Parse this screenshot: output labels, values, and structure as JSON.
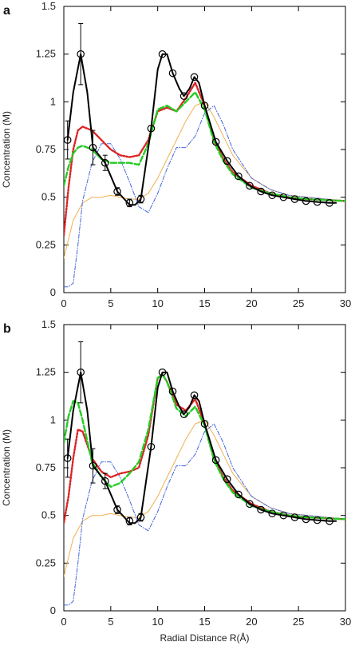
{
  "chart_data": [
    {
      "panel": "a",
      "type": "line",
      "xlabel": "",
      "ylabel": "Concentration (M)",
      "xlim": [
        0,
        30
      ],
      "ylim": [
        0,
        1.5
      ],
      "xticks": [
        "0",
        "5",
        "10",
        "15",
        "20",
        "25",
        "30"
      ],
      "yticks": [
        "0",
        "0.25",
        "0.5",
        "0.75",
        "1",
        "1.25",
        "1.5"
      ],
      "grid": false,
      "series": [
        {
          "style": "markers-with-errorbars",
          "color": "#000000",
          "x": [
            0.4,
            1.8,
            3.1,
            4.4,
            5.7,
            7.0,
            8.2,
            9.3,
            10.5,
            11.6,
            12.8,
            13.9,
            15.0,
            16.2,
            17.4,
            18.6,
            19.8,
            21.0,
            22.2,
            23.4,
            24.6,
            25.8,
            27.0,
            28.3
          ],
          "values": [
            0.8,
            1.25,
            0.76,
            0.68,
            0.53,
            0.47,
            0.49,
            0.86,
            1.25,
            1.15,
            1.03,
            1.13,
            0.98,
            0.79,
            0.69,
            0.61,
            0.56,
            0.53,
            0.51,
            0.5,
            0.49,
            0.48,
            0.475,
            0.47
          ],
          "errors": [
            0.1,
            0.16,
            0.09,
            0.04,
            0.02,
            0.02,
            0.02,
            0.01,
            0.01,
            0.01,
            0.01,
            0.01,
            0.01,
            0.01,
            0.01,
            0.01,
            0.01,
            0.01,
            0.01,
            0.01,
            0.01,
            0.01,
            0.01,
            0.01
          ]
        },
        {
          "style": "solid",
          "color": "#000000",
          "x": [
            0.4,
            1.0,
            1.8,
            2.5,
            3.1,
            4.4,
            5.7,
            7.0,
            7.6,
            8.2,
            9.3,
            10.0,
            10.5,
            11.0,
            11.6,
            12.3,
            12.8,
            13.4,
            13.9,
            14.4,
            15.0,
            16.2,
            17.4,
            18.6,
            19.8,
            21.0,
            22.2,
            23.4,
            24.6,
            25.8,
            27.0,
            28.3,
            29.0
          ],
          "values": [
            0.8,
            1.05,
            1.25,
            1.05,
            0.76,
            0.68,
            0.53,
            0.46,
            0.46,
            0.49,
            0.86,
            1.17,
            1.25,
            1.25,
            1.15,
            1.07,
            1.03,
            1.07,
            1.13,
            1.1,
            0.98,
            0.79,
            0.69,
            0.61,
            0.56,
            0.53,
            0.51,
            0.5,
            0.49,
            0.48,
            0.475,
            0.47,
            0.47
          ]
        },
        {
          "style": "dashed",
          "color": "#22cc22",
          "x": [
            0,
            0.5,
            1.0,
            1.5,
            2.0,
            3.0,
            4.0,
            5.0,
            6.0,
            7.0,
            8.0,
            9.0,
            10.0,
            11.0,
            12.0,
            13.0,
            14.0,
            15.0,
            16.0,
            17.0,
            18.0,
            20.0,
            22.0,
            24.0,
            26.0,
            28.0,
            30.0
          ],
          "values": [
            0.56,
            0.66,
            0.73,
            0.76,
            0.77,
            0.75,
            0.7,
            0.68,
            0.68,
            0.68,
            0.67,
            0.78,
            0.96,
            0.98,
            0.95,
            1.0,
            1.05,
            0.96,
            0.79,
            0.69,
            0.62,
            0.55,
            0.52,
            0.5,
            0.49,
            0.485,
            0.48
          ]
        },
        {
          "style": "dotted",
          "color": "#dd2222",
          "x": [
            0,
            0.5,
            1.0,
            1.5,
            2.0,
            3.0,
            4.0,
            5.0,
            6.0,
            7.0,
            8.0,
            9.0,
            10.0,
            11.0,
            12.0,
            13.0,
            14.0,
            15.0,
            16.0,
            17.0,
            18.0,
            20.0,
            22.0,
            24.0,
            26.0,
            28.0,
            30.0
          ],
          "values": [
            0.3,
            0.55,
            0.75,
            0.85,
            0.87,
            0.85,
            0.8,
            0.75,
            0.72,
            0.71,
            0.72,
            0.8,
            0.95,
            0.97,
            0.95,
            1.02,
            1.1,
            0.98,
            0.8,
            0.7,
            0.63,
            0.56,
            0.52,
            0.5,
            0.49,
            0.485,
            0.48
          ]
        },
        {
          "style": "thin-solid",
          "color": "#f0b050",
          "x": [
            0,
            0.5,
            1.0,
            2.0,
            3.0,
            4.0,
            5.0,
            6.0,
            7.0,
            8.0,
            9.0,
            10.0,
            11.0,
            12.0,
            13.0,
            14.0,
            15.0,
            16.0,
            17.0,
            18.0,
            20.0,
            22.0,
            24.0,
            26.0,
            28.0,
            30.0
          ],
          "values": [
            0.18,
            0.28,
            0.38,
            0.47,
            0.5,
            0.5,
            0.51,
            0.5,
            0.49,
            0.49,
            0.52,
            0.6,
            0.7,
            0.8,
            0.9,
            0.98,
            1.0,
            0.92,
            0.82,
            0.72,
            0.6,
            0.54,
            0.51,
            0.5,
            0.49,
            0.48
          ]
        },
        {
          "style": "dash-dot",
          "color": "#4466dd",
          "x": [
            0,
            0.5,
            1.0,
            1.5,
            2.0,
            3.0,
            4.0,
            5.0,
            6.0,
            7.0,
            8.0,
            9.0,
            10.0,
            11.0,
            12.0,
            13.0,
            14.0,
            15.0,
            16.0,
            17.0,
            18.0,
            20.0,
            22.0,
            24.0,
            26.0,
            28.0,
            30.0
          ],
          "values": [
            0.03,
            0.03,
            0.05,
            0.25,
            0.48,
            0.68,
            0.78,
            0.78,
            0.7,
            0.58,
            0.45,
            0.42,
            0.52,
            0.65,
            0.76,
            0.76,
            0.82,
            0.94,
            0.98,
            0.88,
            0.75,
            0.6,
            0.54,
            0.51,
            0.5,
            0.49,
            0.48
          ]
        }
      ]
    },
    {
      "panel": "b",
      "type": "line",
      "xlabel": "Radial Distance R(Å)",
      "ylabel": "Concentration (M)",
      "xlim": [
        0,
        30
      ],
      "ylim": [
        0,
        1.5
      ],
      "xticks": [
        "0",
        "5",
        "10",
        "15",
        "20",
        "25",
        "30"
      ],
      "yticks": [
        "0",
        "0.25",
        "0.5",
        "0.75",
        "1",
        "1.25",
        "1.5"
      ],
      "grid": false,
      "series": [
        {
          "style": "markers-with-errorbars",
          "color": "#000000",
          "x": [
            0.4,
            1.8,
            3.1,
            4.4,
            5.7,
            7.0,
            8.2,
            9.3,
            10.5,
            11.6,
            12.8,
            13.9,
            15.0,
            16.2,
            17.4,
            18.6,
            19.8,
            21.0,
            22.2,
            23.4,
            24.6,
            25.8,
            27.0,
            28.3
          ],
          "values": [
            0.8,
            1.25,
            0.76,
            0.68,
            0.53,
            0.47,
            0.49,
            0.86,
            1.25,
            1.15,
            1.03,
            1.13,
            0.98,
            0.79,
            0.69,
            0.61,
            0.56,
            0.53,
            0.51,
            0.5,
            0.49,
            0.48,
            0.475,
            0.47
          ],
          "errors": [
            0.1,
            0.16,
            0.09,
            0.04,
            0.02,
            0.02,
            0.02,
            0.01,
            0.01,
            0.01,
            0.01,
            0.01,
            0.01,
            0.01,
            0.01,
            0.01,
            0.01,
            0.01,
            0.01,
            0.01,
            0.01,
            0.01,
            0.01,
            0.01
          ]
        },
        {
          "style": "solid",
          "color": "#000000",
          "x": [
            0.4,
            1.0,
            1.8,
            2.5,
            3.1,
            4.4,
            5.7,
            7.0,
            7.6,
            8.2,
            9.3,
            10.0,
            10.5,
            11.0,
            11.6,
            12.3,
            12.8,
            13.4,
            13.9,
            14.4,
            15.0,
            16.2,
            17.4,
            18.6,
            19.8,
            21.0,
            22.2,
            23.4,
            24.6,
            25.8,
            27.0,
            28.3,
            29.0
          ],
          "values": [
            0.8,
            1.05,
            1.25,
            1.05,
            0.76,
            0.68,
            0.53,
            0.46,
            0.46,
            0.49,
            0.86,
            1.17,
            1.25,
            1.25,
            1.15,
            1.07,
            1.03,
            1.07,
            1.13,
            1.1,
            0.98,
            0.79,
            0.69,
            0.61,
            0.56,
            0.53,
            0.51,
            0.5,
            0.49,
            0.48,
            0.475,
            0.47,
            0.47
          ]
        },
        {
          "style": "dashed",
          "color": "#22cc22",
          "x": [
            0,
            0.5,
            1.0,
            1.5,
            2.0,
            3.0,
            4.0,
            5.0,
            6.0,
            7.0,
            8.0,
            9.0,
            10.0,
            10.5,
            11.0,
            12.0,
            13.0,
            14.0,
            15.0,
            16.0,
            17.0,
            18.0,
            20.0,
            22.0,
            24.0,
            26.0,
            28.0,
            30.0
          ],
          "values": [
            0.88,
            1.02,
            1.1,
            1.09,
            1.0,
            0.78,
            0.7,
            0.65,
            0.67,
            0.72,
            0.78,
            0.95,
            1.22,
            1.24,
            1.2,
            1.06,
            1.02,
            1.07,
            0.97,
            0.79,
            0.69,
            0.62,
            0.55,
            0.52,
            0.5,
            0.49,
            0.485,
            0.48
          ]
        },
        {
          "style": "dotted",
          "color": "#dd2222",
          "x": [
            0,
            0.5,
            1.0,
            1.5,
            2.0,
            3.0,
            4.0,
            5.0,
            6.0,
            7.0,
            8.0,
            9.0,
            10.0,
            10.5,
            11.0,
            12.0,
            13.0,
            14.0,
            15.0,
            16.0,
            17.0,
            18.0,
            20.0,
            22.0,
            24.0,
            26.0,
            28.0,
            30.0
          ],
          "values": [
            0.46,
            0.6,
            0.8,
            0.95,
            0.94,
            0.8,
            0.73,
            0.7,
            0.72,
            0.73,
            0.75,
            0.92,
            1.22,
            1.24,
            1.2,
            1.08,
            1.05,
            1.11,
            0.98,
            0.8,
            0.7,
            0.63,
            0.56,
            0.52,
            0.5,
            0.49,
            0.485,
            0.48
          ]
        },
        {
          "style": "thin-solid",
          "color": "#f0b050",
          "x": [
            0,
            0.5,
            1.0,
            2.0,
            3.0,
            4.0,
            5.0,
            6.0,
            7.0,
            8.0,
            9.0,
            10.0,
            11.0,
            12.0,
            13.0,
            14.0,
            15.0,
            16.0,
            17.0,
            18.0,
            20.0,
            22.0,
            24.0,
            26.0,
            28.0,
            30.0
          ],
          "values": [
            0.18,
            0.28,
            0.38,
            0.47,
            0.5,
            0.5,
            0.51,
            0.5,
            0.49,
            0.49,
            0.52,
            0.6,
            0.7,
            0.8,
            0.9,
            0.98,
            1.0,
            0.92,
            0.82,
            0.72,
            0.6,
            0.54,
            0.51,
            0.5,
            0.49,
            0.48
          ]
        },
        {
          "style": "dash-dot",
          "color": "#4466dd",
          "x": [
            0,
            0.5,
            1.0,
            1.5,
            2.0,
            3.0,
            4.0,
            5.0,
            6.0,
            7.0,
            8.0,
            9.0,
            10.0,
            11.0,
            12.0,
            13.0,
            14.0,
            15.0,
            16.0,
            17.0,
            18.0,
            20.0,
            22.0,
            24.0,
            26.0,
            28.0,
            30.0
          ],
          "values": [
            0.03,
            0.03,
            0.05,
            0.25,
            0.48,
            0.68,
            0.78,
            0.78,
            0.7,
            0.58,
            0.45,
            0.42,
            0.52,
            0.65,
            0.76,
            0.76,
            0.82,
            0.94,
            0.98,
            0.88,
            0.75,
            0.6,
            0.54,
            0.51,
            0.5,
            0.49,
            0.48
          ]
        }
      ]
    }
  ]
}
